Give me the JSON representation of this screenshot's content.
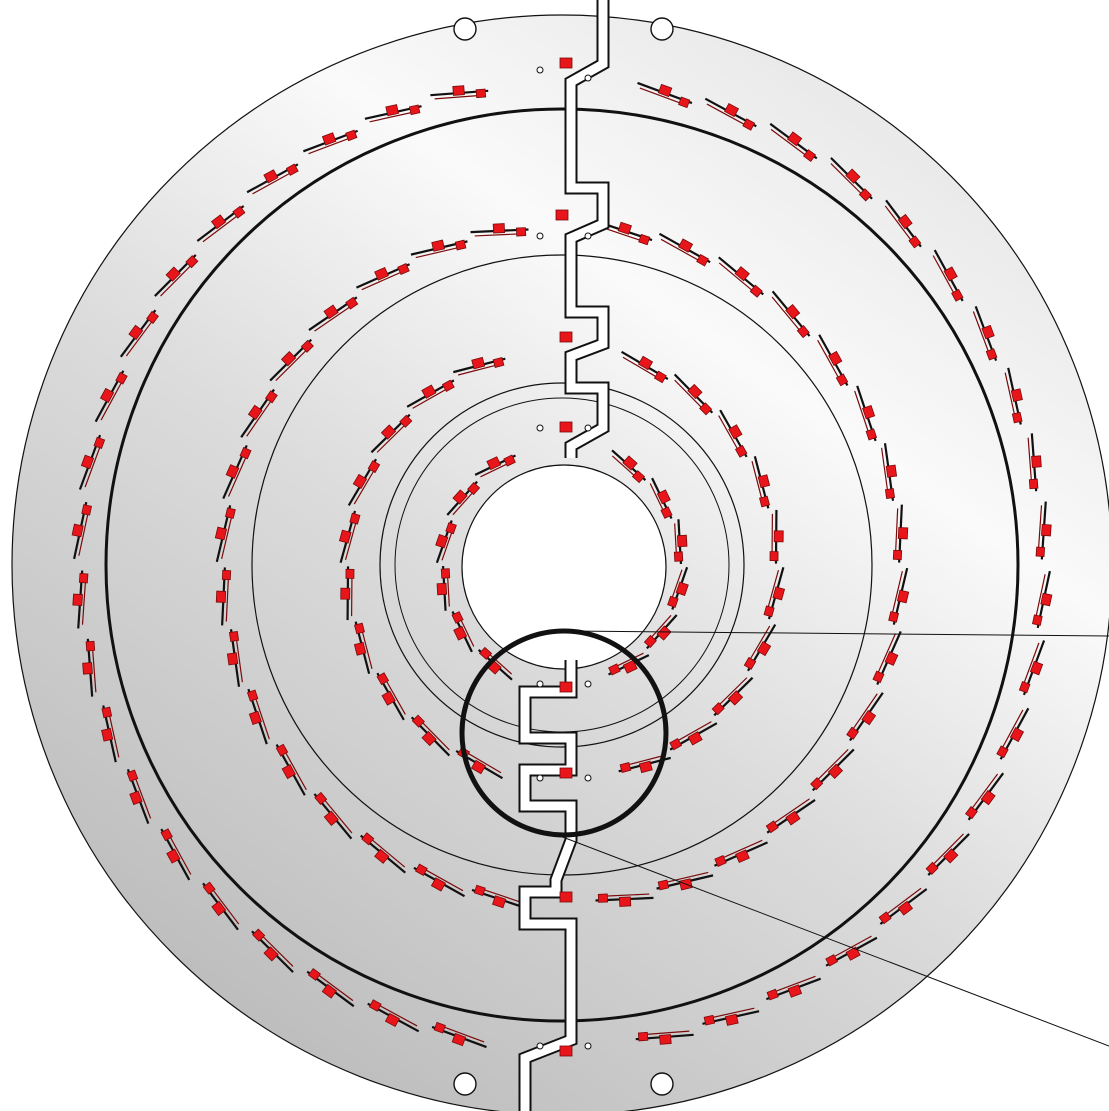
{
  "title": "",
  "colors": {
    "background": "#ffffff",
    "plate_light": "#f7f7f7",
    "plate_dark": "#b9b9b9",
    "outline": "#111111",
    "component": "#e8151b",
    "component_edge": "#7a0a0a",
    "highlight_circle": "#111111",
    "trace_fill": "#ffffff"
  },
  "elements": {
    "plate": "circular-board",
    "mounting_holes": 4,
    "component_rings": 4,
    "detail_marker": "circle-magnifier",
    "leader_lines": 2
  }
}
